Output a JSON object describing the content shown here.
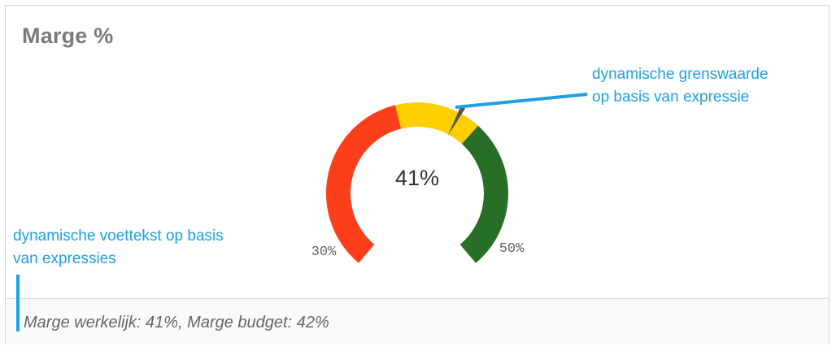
{
  "card": {
    "title": "Marge %",
    "footer_text": "Marge werkelijk: 41%, Marge budget: 42%"
  },
  "gauge": {
    "value_label": "41%",
    "min_label": "30%",
    "max_label": "50%",
    "min": 30,
    "max": 50,
    "value": 41,
    "threshold": 42,
    "segments": [
      {
        "from": 30,
        "to": 39,
        "color": "#fc3f1a"
      },
      {
        "from": 39,
        "to": 43,
        "color": "#ffcf02"
      },
      {
        "from": 43,
        "to": 50,
        "color": "#276e27"
      }
    ],
    "needle_color": "#555555"
  },
  "annotations": {
    "threshold_note_line1": "dynamische grenswaarde",
    "threshold_note_line2": "op basis van expressie",
    "footer_note_line1": "dynamische voettekst op basis",
    "footer_note_line2": "van expressies"
  },
  "colors": {
    "annotation": "#1da1e2",
    "title": "#7a7a7a"
  }
}
